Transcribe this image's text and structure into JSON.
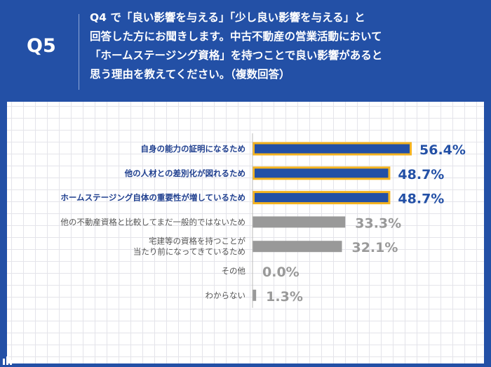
{
  "question": {
    "number": "Q5",
    "lines": [
      "Q4 で「良い影響を与える」「少し良い影響を与える」と",
      "回答した方にお聞きします。中古不動産の営業活動において",
      "「ホームステージング資格」を持つことで良い影響があると",
      "思う理由を教えてください。（複数回答）"
    ]
  },
  "colors": {
    "header_bg": "#2350a6",
    "highlight_bar": "#2350a6",
    "highlight_border": "#f5b31f",
    "gray_bar": "#999999",
    "highlight_label": "#1f3f8f",
    "gray_label": "#555555"
  },
  "logo_icon": "logo-icon",
  "chart_data": {
    "type": "bar",
    "orientation": "horizontal",
    "categories": [
      [
        "自身の能力の証明になるため"
      ],
      [
        "他の人材との差別化が図れるため"
      ],
      [
        "ホームステージング自体の重要性が増しているため"
      ],
      [
        "他の不動産資格と比較してまだ一般的ではないため"
      ],
      [
        "宅建等の資格を持つことが",
        "当たり前になってきているため"
      ],
      [
        "その他"
      ],
      [
        "わからない"
      ]
    ],
    "values": [
      56.4,
      48.7,
      48.7,
      33.3,
      32.1,
      0.0,
      1.3
    ],
    "value_labels": [
      "56.4%",
      "48.7%",
      "48.7%",
      "33.3%",
      "32.1%",
      "0.0%",
      "1.3%"
    ],
    "highlighted": [
      true,
      true,
      true,
      false,
      false,
      false,
      false
    ],
    "xlim": [
      0,
      100
    ],
    "grid": false,
    "title": "",
    "xlabel": "",
    "ylabel": ""
  }
}
